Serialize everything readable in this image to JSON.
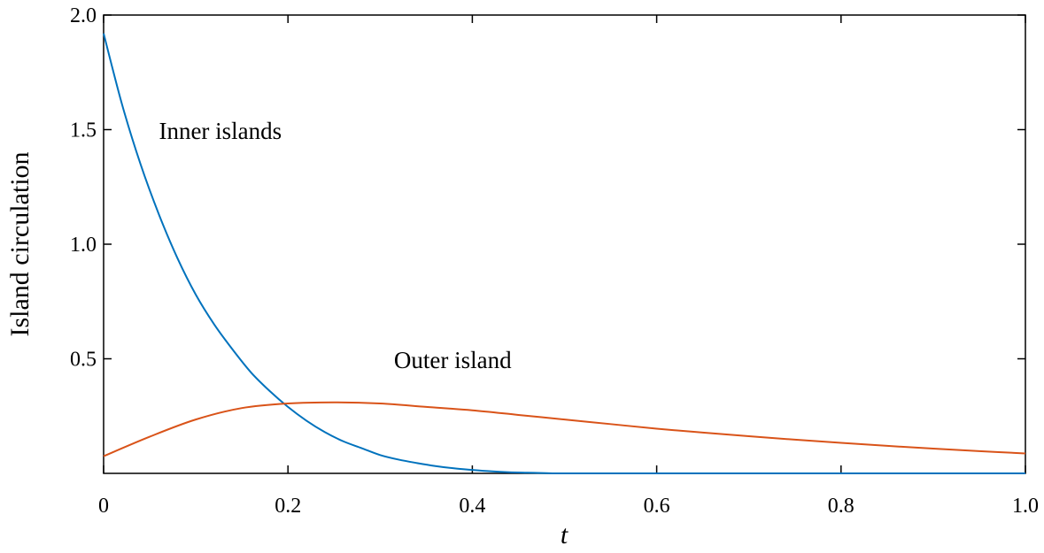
{
  "chart_data": {
    "type": "line",
    "title": "",
    "xlabel": "t",
    "ylabel": "Island circulation",
    "xlim": [
      0,
      1.0
    ],
    "ylim": [
      0,
      2.0
    ],
    "xticks": [
      0,
      0.2,
      0.4,
      0.6,
      0.8,
      1.0
    ],
    "xtick_labels": [
      "0",
      "0.2",
      "0.4",
      "0.6",
      "0.8",
      "1.0"
    ],
    "yticks": [
      0.5,
      1.0,
      1.5,
      2.0
    ],
    "ytick_labels": [
      "0.5",
      "1.0",
      "1.5",
      "2.0"
    ],
    "grid": false,
    "series": [
      {
        "color": "#0072BD",
        "x": [
          0.0,
          0.02,
          0.04,
          0.06,
          0.08,
          0.1,
          0.12,
          0.14,
          0.16,
          0.18,
          0.2,
          0.22,
          0.24,
          0.26,
          0.28,
          0.3,
          0.32,
          0.34,
          0.36,
          0.38,
          0.4,
          0.42,
          0.44,
          0.46,
          0.48,
          0.5,
          0.6,
          0.7,
          0.8,
          0.9,
          1.0
        ],
        "y": [
          1.92,
          1.61,
          1.35,
          1.13,
          0.94,
          0.78,
          0.65,
          0.54,
          0.44,
          0.36,
          0.29,
          0.23,
          0.18,
          0.14,
          0.11,
          0.08,
          0.06,
          0.045,
          0.032,
          0.022,
          0.015,
          0.009,
          0.005,
          0.003,
          0.001,
          0.0,
          0.0,
          0.0,
          0.0,
          0.0,
          0.0
        ]
      },
      {
        "color": "#D95319",
        "x": [
          0.0,
          0.05,
          0.1,
          0.15,
          0.2,
          0.25,
          0.3,
          0.35,
          0.4,
          0.45,
          0.5,
          0.55,
          0.6,
          0.65,
          0.7,
          0.75,
          0.8,
          0.85,
          0.9,
          0.95,
          1.0
        ],
        "y": [
          0.075,
          0.16,
          0.235,
          0.285,
          0.305,
          0.31,
          0.305,
          0.29,
          0.275,
          0.255,
          0.235,
          0.215,
          0.195,
          0.178,
          0.162,
          0.147,
          0.133,
          0.12,
          0.108,
          0.097,
          0.087
        ]
      }
    ],
    "annotations": [
      {
        "text": "Inner islands",
        "x": 0.06,
        "y": 1.46
      },
      {
        "text": "Outer island",
        "x": 0.315,
        "y": 0.46
      }
    ]
  }
}
